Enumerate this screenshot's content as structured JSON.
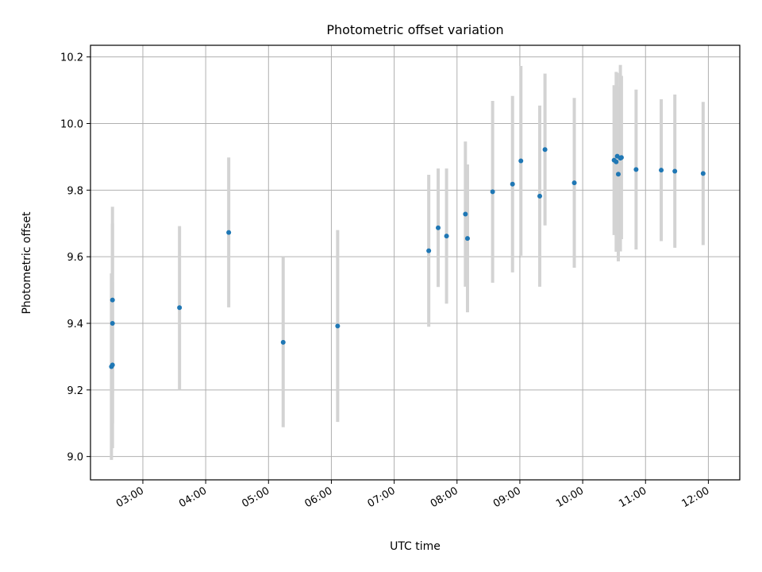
{
  "chart_data": {
    "type": "scatter",
    "title": "Photometric offset variation",
    "xlabel": "UTC time",
    "ylabel": "Photometric offset",
    "grid": true,
    "xlim": [
      "02:10",
      "12:30"
    ],
    "ylim": [
      8.93,
      10.235
    ],
    "x_ticks": [
      "03:00",
      "04:00",
      "05:00",
      "06:00",
      "07:00",
      "08:00",
      "09:00",
      "10:00",
      "11:00",
      "12:00"
    ],
    "y_ticks": [
      9.0,
      9.2,
      9.4,
      9.6,
      9.8,
      10.0,
      10.2
    ],
    "y_tick_labels": [
      "9.0",
      "9.2",
      "9.4",
      "9.6",
      "9.8",
      "10.0",
      "10.2"
    ],
    "marker_color": "#1f77b4",
    "errorbar_color": "#d3d3d3",
    "points": [
      {
        "x": "02:30",
        "y": 9.27,
        "err": 0.28
      },
      {
        "x": "02:31",
        "y": 9.275,
        "err": 0.25
      },
      {
        "x": "02:31",
        "y": 9.4,
        "err": 0.3
      },
      {
        "x": "02:31",
        "y": 9.47,
        "err": 0.28
      },
      {
        "x": "03:35",
        "y": 9.447,
        "err": 0.245
      },
      {
        "x": "04:22",
        "y": 9.673,
        "err": 0.225
      },
      {
        "x": "05:14",
        "y": 9.343,
        "err": 0.255
      },
      {
        "x": "06:06",
        "y": 9.392,
        "err": 0.288
      },
      {
        "x": "07:33",
        "y": 9.618,
        "err": 0.228
      },
      {
        "x": "07:42",
        "y": 9.687,
        "err": 0.178
      },
      {
        "x": "07:50",
        "y": 9.662,
        "err": 0.203
      },
      {
        "x": "08:08",
        "y": 9.728,
        "err": 0.218
      },
      {
        "x": "08:10",
        "y": 9.655,
        "err": 0.222
      },
      {
        "x": "08:34",
        "y": 9.795,
        "err": 0.273
      },
      {
        "x": "08:53",
        "y": 9.818,
        "err": 0.265
      },
      {
        "x": "09:01",
        "y": 9.888,
        "err": 0.285
      },
      {
        "x": "09:19",
        "y": 9.782,
        "err": 0.272
      },
      {
        "x": "09:24",
        "y": 9.922,
        "err": 0.228
      },
      {
        "x": "09:52",
        "y": 9.822,
        "err": 0.255
      },
      {
        "x": "10:30",
        "y": 9.89,
        "err": 0.225
      },
      {
        "x": "10:32",
        "y": 9.885,
        "err": 0.27
      },
      {
        "x": "10:33",
        "y": 9.902,
        "err": 0.25
      },
      {
        "x": "10:34",
        "y": 9.848,
        "err": 0.262
      },
      {
        "x": "10:36",
        "y": 9.896,
        "err": 0.28
      },
      {
        "x": "10:37",
        "y": 9.898,
        "err": 0.245
      },
      {
        "x": "10:51",
        "y": 9.862,
        "err": 0.24
      },
      {
        "x": "11:15",
        "y": 9.86,
        "err": 0.213
      },
      {
        "x": "11:28",
        "y": 9.857,
        "err": 0.23
      },
      {
        "x": "11:55",
        "y": 9.85,
        "err": 0.215
      }
    ]
  }
}
